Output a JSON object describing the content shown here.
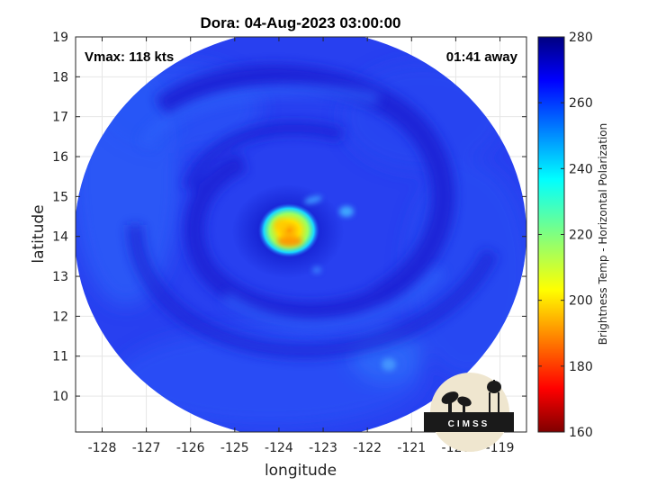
{
  "title": "Dora: 04-Aug-2023 03:00:00",
  "annotations": {
    "vmax": "Vmax: 118 kts",
    "time_away": "01:41 away"
  },
  "axes": {
    "xlabel": "longitude",
    "ylabel": "latitude",
    "xlim": [
      -128.6,
      -118.4
    ],
    "ylim": [
      9.1,
      19
    ],
    "xticks": [
      -128,
      -127,
      -126,
      -125,
      -124,
      -123,
      -122,
      -121,
      -120,
      -119
    ],
    "yticks": [
      10,
      11,
      12,
      13,
      14,
      15,
      16,
      17,
      18,
      19
    ]
  },
  "colorbar": {
    "label": "Brightness Temp - Horizontal Polarization",
    "min": 160,
    "max": 280,
    "ticks": [
      160,
      180,
      200,
      220,
      240,
      260,
      280
    ],
    "colormap": "jet"
  },
  "storm": {
    "center_lon": -123.8,
    "center_lat": 13.95
  },
  "logo": {
    "text": "CIMSS"
  },
  "colors": {
    "background": "#2a3cf0",
    "swath_dark": "#1a22d8",
    "eyewall": "#ffe800"
  }
}
